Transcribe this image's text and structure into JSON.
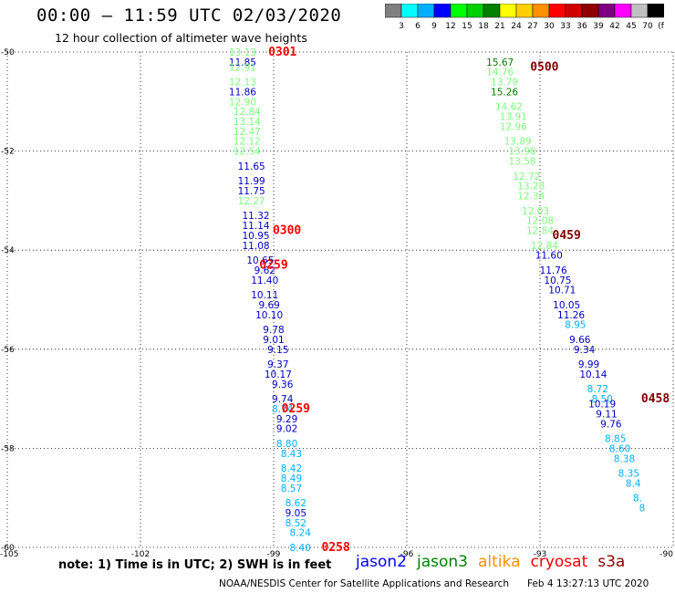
{
  "title": "00:00 – 11:59 UTC 02/03/2020",
  "subtitle": "12 hour collection of altimeter wave heights",
  "colorbar": {
    "colors": [
      "#808080",
      "#00ffff",
      "#00b0ff",
      "#0000ff",
      "#00ff00",
      "#00d000",
      "#008000",
      "#ffff00",
      "#ffd000",
      "#ff9000",
      "#ff0000",
      "#d00000",
      "#900000",
      "#800080",
      "#ff00ff",
      "#c0c0c0",
      "#000000"
    ],
    "labels": [
      "3",
      "6",
      "9",
      "12",
      "15",
      "18",
      "21",
      "24",
      "27",
      "30",
      "33",
      "36",
      "39",
      "42",
      "45",
      "70",
      "(ft)"
    ]
  },
  "chart_data": {
    "type": "scatter",
    "xlim": [
      -105,
      -90
    ],
    "ylim": [
      -60,
      -50
    ],
    "x_ticks": [
      "-105",
      "-102",
      "-99",
      "-96",
      "-93",
      "-90"
    ],
    "y_ticks": [
      "-50",
      "-52",
      "-54",
      "-56",
      "-58",
      "-60"
    ],
    "grid": true,
    "track1_labels": [
      {
        "t": "13.13",
        "c": "#7fff7f",
        "lon": -99.7,
        "lat": -50.0
      },
      {
        "t": "11.85",
        "c": "#0000c0",
        "lon": -99.7,
        "lat": -50.2
      },
      {
        "t": "12.91",
        "c": "#7fff7f",
        "lon": -99.7,
        "lat": -50.3
      },
      {
        "t": "12.13",
        "c": "#7fff7f",
        "lon": -99.7,
        "lat": -50.6
      },
      {
        "t": "11.86",
        "c": "#0000c0",
        "lon": -99.7,
        "lat": -50.8
      },
      {
        "t": "12.90",
        "c": "#7fff7f",
        "lon": -99.7,
        "lat": -51.0
      },
      {
        "t": "12.84",
        "c": "#7fff7f",
        "lon": -99.6,
        "lat": -51.2
      },
      {
        "t": "13.14",
        "c": "#7fff7f",
        "lon": -99.6,
        "lat": -51.4
      },
      {
        "t": "12.47",
        "c": "#7fff7f",
        "lon": -99.6,
        "lat": -51.6
      },
      {
        "t": "12.12",
        "c": "#7fff7f",
        "lon": -99.6,
        "lat": -51.8
      },
      {
        "t": "12.54",
        "c": "#7fff7f",
        "lon": -99.6,
        "lat": -52.0
      },
      {
        "t": "11.65",
        "c": "#0000c0",
        "lon": -99.5,
        "lat": -52.3
      },
      {
        "t": "11.99",
        "c": "#0000c0",
        "lon": -99.5,
        "lat": -52.6
      },
      {
        "t": "11.75",
        "c": "#0000c0",
        "lon": -99.5,
        "lat": -52.8
      },
      {
        "t": "12.27",
        "c": "#7fff7f",
        "lon": -99.5,
        "lat": -53.0
      },
      {
        "t": "11.32",
        "c": "#0000c0",
        "lon": -99.4,
        "lat": -53.3
      },
      {
        "t": "11.14",
        "c": "#0000c0",
        "lon": -99.4,
        "lat": -53.5
      },
      {
        "t": "10.95",
        "c": "#0000c0",
        "lon": -99.4,
        "lat": -53.7
      },
      {
        "t": "11.08",
        "c": "#0000c0",
        "lon": -99.4,
        "lat": -53.9
      },
      {
        "t": "10.65",
        "c": "#0000c0",
        "lon": -99.3,
        "lat": -54.2
      },
      {
        "t": "9.62",
        "c": "#0000c0",
        "lon": -99.2,
        "lat": -54.4
      },
      {
        "t": "11.40",
        "c": "#0000c0",
        "lon": -99.2,
        "lat": -54.6
      },
      {
        "t": "10.11",
        "c": "#0000c0",
        "lon": -99.2,
        "lat": -54.9
      },
      {
        "t": "9.69",
        "c": "#0000c0",
        "lon": -99.1,
        "lat": -55.1
      },
      {
        "t": "10.10",
        "c": "#0000c0",
        "lon": -99.1,
        "lat": -55.3
      },
      {
        "t": "9.78",
        "c": "#0000c0",
        "lon": -99.0,
        "lat": -55.6
      },
      {
        "t": "9.01",
        "c": "#0000c0",
        "lon": -99.0,
        "lat": -55.8
      },
      {
        "t": "9.15",
        "c": "#0000c0",
        "lon": -98.9,
        "lat": -56.0
      },
      {
        "t": "9.37",
        "c": "#0000c0",
        "lon": -98.9,
        "lat": -56.3
      },
      {
        "t": "10.17",
        "c": "#0000c0",
        "lon": -98.9,
        "lat": -56.5
      },
      {
        "t": "9.36",
        "c": "#0000c0",
        "lon": -98.8,
        "lat": -56.7
      },
      {
        "t": "9.74",
        "c": "#0000c0",
        "lon": -98.8,
        "lat": -57.0
      },
      {
        "t": "8.74",
        "c": "#00b0ff",
        "lon": -98.8,
        "lat": -57.2
      },
      {
        "t": "9.29",
        "c": "#0000c0",
        "lon": -98.7,
        "lat": -57.4
      },
      {
        "t": "9.02",
        "c": "#0000c0",
        "lon": -98.7,
        "lat": -57.6
      },
      {
        "t": "8.80",
        "c": "#00b0ff",
        "lon": -98.7,
        "lat": -57.9
      },
      {
        "t": "8.43",
        "c": "#00b0ff",
        "lon": -98.6,
        "lat": -58.1
      },
      {
        "t": "8.42",
        "c": "#00b0ff",
        "lon": -98.6,
        "lat": -58.4
      },
      {
        "t": "8.49",
        "c": "#00b0ff",
        "lon": -98.6,
        "lat": -58.6
      },
      {
        "t": "8.57",
        "c": "#00b0ff",
        "lon": -98.6,
        "lat": -58.8
      },
      {
        "t": "8.62",
        "c": "#00b0ff",
        "lon": -98.5,
        "lat": -59.1
      },
      {
        "t": "9.05",
        "c": "#0000c0",
        "lon": -98.5,
        "lat": -59.3
      },
      {
        "t": "8.52",
        "c": "#00b0ff",
        "lon": -98.5,
        "lat": -59.5
      },
      {
        "t": "8.24",
        "c": "#00b0ff",
        "lon": -98.4,
        "lat": -59.7
      },
      {
        "t": "8.40",
        "c": "#00b0ff",
        "lon": -98.4,
        "lat": -60.0
      }
    ],
    "track2_labels": [
      {
        "t": "15.67",
        "c": "#008000",
        "lon": -93.9,
        "lat": -50.2
      },
      {
        "t": "14.76",
        "c": "#7fff7f",
        "lon": -93.9,
        "lat": -50.4
      },
      {
        "t": "13.79",
        "c": "#7fff7f",
        "lon": -93.8,
        "lat": -50.6
      },
      {
        "t": "15.26",
        "c": "#008000",
        "lon": -93.8,
        "lat": -50.8
      },
      {
        "t": "14.62",
        "c": "#7fff7f",
        "lon": -93.7,
        "lat": -51.1
      },
      {
        "t": "13.91",
        "c": "#7fff7f",
        "lon": -93.6,
        "lat": -51.3
      },
      {
        "t": "12.96",
        "c": "#7fff7f",
        "lon": -93.6,
        "lat": -51.5
      },
      {
        "t": "13.89",
        "c": "#7fff7f",
        "lon": -93.5,
        "lat": -51.8
      },
      {
        "t": "13.90",
        "c": "#7fff7f",
        "lon": -93.4,
        "lat": -52.0
      },
      {
        "t": "13.58",
        "c": "#7fff7f",
        "lon": -93.4,
        "lat": -52.2
      },
      {
        "t": "12.72",
        "c": "#7fff7f",
        "lon": -93.3,
        "lat": -52.5
      },
      {
        "t": "13.28",
        "c": "#7fff7f",
        "lon": -93.2,
        "lat": -52.7
      },
      {
        "t": "12.34",
        "c": "#7fff7f",
        "lon": -93.2,
        "lat": -52.9
      },
      {
        "t": "12.03",
        "c": "#7fff7f",
        "lon": -93.1,
        "lat": -53.2
      },
      {
        "t": "12.08",
        "c": "#7fff7f",
        "lon": -93.0,
        "lat": -53.4
      },
      {
        "t": "12.84",
        "c": "#7fff7f",
        "lon": -93.0,
        "lat": -53.6
      },
      {
        "t": "12.84",
        "c": "#7fff7f",
        "lon": -92.9,
        "lat": -53.9
      },
      {
        "t": "11.60",
        "c": "#0000c0",
        "lon": -92.8,
        "lat": -54.1
      },
      {
        "t": "11.76",
        "c": "#0000c0",
        "lon": -92.7,
        "lat": -54.4
      },
      {
        "t": "10.75",
        "c": "#0000c0",
        "lon": -92.6,
        "lat": -54.6
      },
      {
        "t": "10.71",
        "c": "#0000c0",
        "lon": -92.5,
        "lat": -54.8
      },
      {
        "t": "10.05",
        "c": "#0000c0",
        "lon": -92.4,
        "lat": -55.1
      },
      {
        "t": "11.26",
        "c": "#0000c0",
        "lon": -92.3,
        "lat": -55.3
      },
      {
        "t": "8.95",
        "c": "#00b0ff",
        "lon": -92.2,
        "lat": -55.5
      },
      {
        "t": "9.66",
        "c": "#0000c0",
        "lon": -92.1,
        "lat": -55.8
      },
      {
        "t": "9.34",
        "c": "#0000c0",
        "lon": -92.0,
        "lat": -56.0
      },
      {
        "t": "9.99",
        "c": "#0000c0",
        "lon": -91.9,
        "lat": -56.3
      },
      {
        "t": "10.14",
        "c": "#0000c0",
        "lon": -91.8,
        "lat": -56.5
      },
      {
        "t": "8.72",
        "c": "#00b0ff",
        "lon": -91.7,
        "lat": -56.8
      },
      {
        "t": "8.50",
        "c": "#00b0ff",
        "lon": -91.6,
        "lat": -57.0
      },
      {
        "t": "10.19",
        "c": "#0000c0",
        "lon": -91.6,
        "lat": -57.1
      },
      {
        "t": "9.11",
        "c": "#0000c0",
        "lon": -91.5,
        "lat": -57.3
      },
      {
        "t": "9.76",
        "c": "#0000c0",
        "lon": -91.4,
        "lat": -57.5
      },
      {
        "t": "8.85",
        "c": "#00b0ff",
        "lon": -91.3,
        "lat": -57.8
      },
      {
        "t": "8.60",
        "c": "#00b0ff",
        "lon": -91.2,
        "lat": -58.0
      },
      {
        "t": "8.38",
        "c": "#00b0ff",
        "lon": -91.1,
        "lat": -58.2
      },
      {
        "t": "8.35",
        "c": "#00b0ff",
        "lon": -91.0,
        "lat": -58.5
      },
      {
        "t": "8.4",
        "c": "#00b0ff",
        "lon": -90.9,
        "lat": -58.7
      },
      {
        "t": "8.",
        "c": "#00b0ff",
        "lon": -90.8,
        "lat": -59.0
      },
      {
        "t": "8",
        "c": "#00b0ff",
        "lon": -90.7,
        "lat": -59.2
      }
    ],
    "time_labels": [
      {
        "t": "0301",
        "c": "#ff0000",
        "lon": -98.8,
        "lat": -50.0
      },
      {
        "t": "0300",
        "c": "#ff0000",
        "lon": -98.7,
        "lat": -53.6
      },
      {
        "t": "0259",
        "c": "#ff0000",
        "lon": -99.0,
        "lat": -54.3
      },
      {
        "t": "0259",
        "c": "#ff0000",
        "lon": -98.5,
        "lat": -57.2
      },
      {
        "t": "0258",
        "c": "#ff0000",
        "lon": -97.6,
        "lat": -60.0
      },
      {
        "t": "0500",
        "c": "#800000",
        "lon": -92.9,
        "lat": -50.3
      },
      {
        "t": "0459",
        "c": "#800000",
        "lon": -92.4,
        "lat": -53.7
      },
      {
        "t": "0458",
        "c": "#800000",
        "lon": -90.4,
        "lat": -57.0
      }
    ]
  },
  "note": "note:  1) Time is in UTC;  2) SWH is in feet",
  "legend": [
    {
      "name": "jason2",
      "color": "#0000ff"
    },
    {
      "name": "jason3",
      "color": "#008000"
    },
    {
      "name": "altika",
      "color": "#ff9000"
    },
    {
      "name": "cryosat",
      "color": "#ff0000"
    },
    {
      "name": "s3a",
      "color": "#900000"
    }
  ],
  "footer": {
    "credit": "NOAA/NESDIS Center for Satellite Applications and Research",
    "generated": "Feb  4 13:27:13 UTC 2020"
  }
}
